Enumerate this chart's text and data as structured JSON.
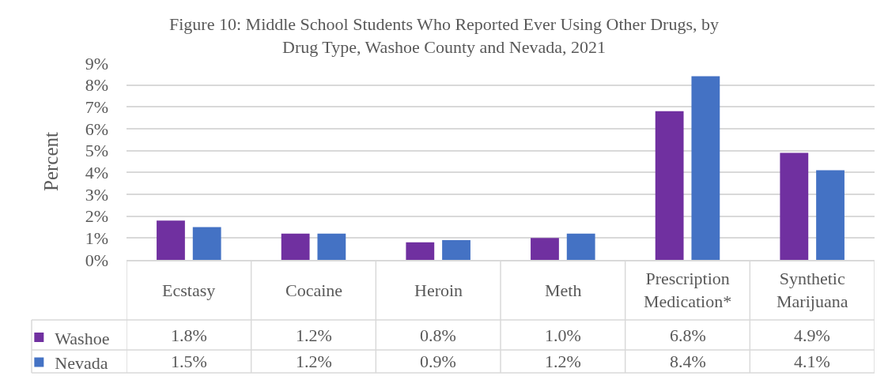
{
  "chart_data": {
    "type": "bar",
    "title": "Figure 10: Middle School Students Who Reported Ever Using Other Drugs, by Drug Type, Washoe County and Nevada, 2021",
    "ylabel": "Percent",
    "categories": [
      "Ecstasy",
      "Cocaine",
      "Heroin",
      "Meth",
      "Prescription Medication*",
      "Synthetic Marijuana"
    ],
    "series": [
      {
        "name": "Washoe",
        "color": "#7030a0",
        "values": [
          1.8,
          1.2,
          0.8,
          1.0,
          6.8,
          4.9
        ],
        "value_labels": [
          "1.8%",
          "1.2%",
          "0.8%",
          "1.0%",
          "6.8%",
          "4.9%"
        ]
      },
      {
        "name": "Nevada",
        "color": "#4472c4",
        "values": [
          1.5,
          1.2,
          0.9,
          1.2,
          8.4,
          4.1
        ],
        "value_labels": [
          "1.5%",
          "1.2%",
          "0.9%",
          "1.2%",
          "8.4%",
          "4.1%"
        ]
      }
    ],
    "ylim": [
      0,
      9
    ],
    "yticks": [
      {
        "value": 0,
        "label": "0%"
      },
      {
        "value": 1,
        "label": "1%"
      },
      {
        "value": 2,
        "label": "2%"
      },
      {
        "value": 3,
        "label": "3%"
      },
      {
        "value": 4,
        "label": "4%"
      },
      {
        "value": 5,
        "label": "5%"
      },
      {
        "value": 6,
        "label": "6%"
      },
      {
        "value": 7,
        "label": "7%"
      },
      {
        "value": 8,
        "label": "8%"
      },
      {
        "value": 9,
        "label": "9%"
      }
    ],
    "grid": "y",
    "legend": "bottom left"
  }
}
